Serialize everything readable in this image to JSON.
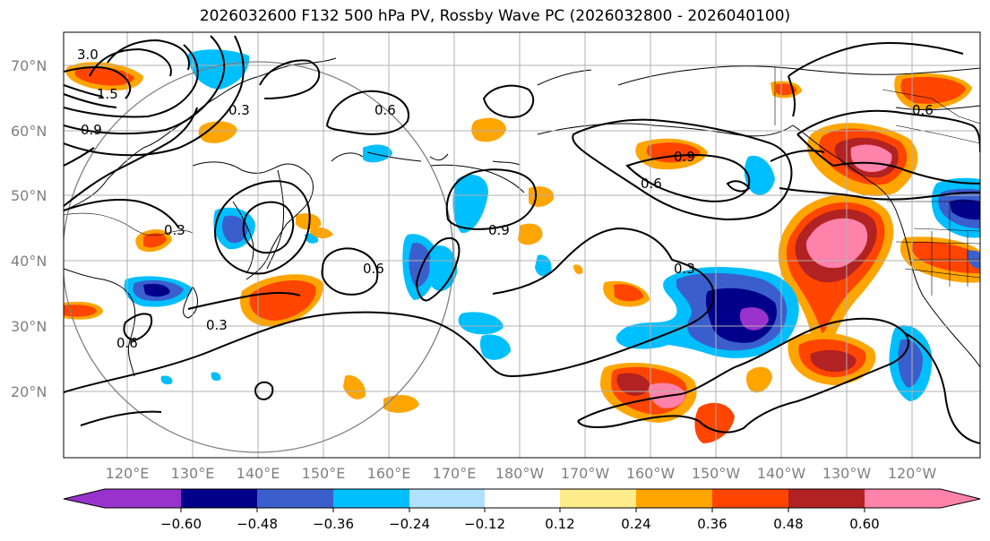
{
  "title": "2026032600 F132 500 hPa PV, Rossby Wave PC (2026032800 - 2026040100)",
  "map": {
    "lat_labels": [
      "70°N",
      "60°N",
      "50°N",
      "40°N",
      "30°N",
      "20°N"
    ],
    "lon_labels": [
      "120°E",
      "130°E",
      "140°E",
      "150°E",
      "160°E",
      "170°E",
      "180°W",
      "170°W",
      "160°W",
      "150°W",
      "140°W",
      "130°W",
      "120°W"
    ],
    "contour_labels": [
      "3.0",
      "1.5",
      "0.3",
      "0.6",
      "0.9",
      "0.3",
      "0.6",
      "0.9",
      "0.6",
      "0.3",
      "0.9",
      "0.6",
      "0.3",
      "0.6"
    ]
  },
  "colorbar": {
    "ticks": [
      "−0.60",
      "−0.48",
      "−0.36",
      "−0.24",
      "−0.12",
      "0.12",
      "0.24",
      "0.36",
      "0.48",
      "0.60"
    ],
    "colors": [
      "#9932cc",
      "#00008b",
      "#3a5fcd",
      "#00bfff",
      "#b0e2ff",
      "#ffffff",
      "#ffec8b",
      "#ffa500",
      "#ff4500",
      "#b22222",
      "#ff82ab",
      "#ff82ab"
    ]
  }
}
